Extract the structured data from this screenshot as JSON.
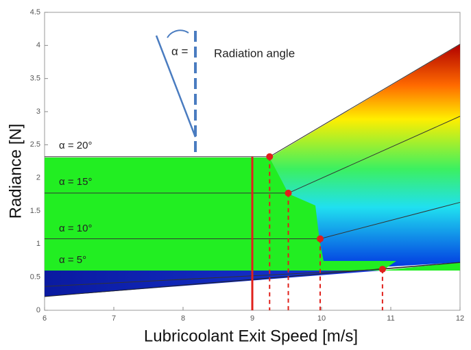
{
  "chart_data": {
    "type": "line",
    "x_label": "Lubricoolant Exit Speed [m/s]",
    "y_label": "Radiance [N]",
    "annotations": [
      "α =",
      "Radiation angle"
    ],
    "xlim": [
      6,
      12
    ],
    "xticks": [
      6,
      7,
      8,
      9,
      10,
      11,
      12
    ],
    "ylim": [
      0,
      4.5
    ],
    "yticks": [
      0,
      0.5,
      1,
      1.5,
      2,
      2.5,
      3,
      3.5,
      4,
      4.5
    ],
    "series": [
      {
        "name": "α = 20°",
        "color": "#333333",
        "x": [
          6,
          9.25,
          12
        ],
        "values": [
          2.32,
          2.32,
          4.02
        ]
      },
      {
        "name": "α = 15°",
        "color": "#333333",
        "x": [
          6,
          9.52,
          12
        ],
        "values": [
          1.77,
          1.77,
          2.93
        ]
      },
      {
        "name": "α = 10°",
        "color": "#333333",
        "x": [
          6,
          9.98,
          12
        ],
        "values": [
          1.08,
          1.08,
          1.63
        ]
      },
      {
        "name": "α = 5°",
        "color": "#333333",
        "x": [
          6,
          10.88,
          12
        ],
        "values": [
          0.36,
          0.62,
          0.72
        ]
      }
    ],
    "points": {
      "color": "#e0201b",
      "x": [
        9.25,
        9.52,
        9.98,
        10.88
      ],
      "values": [
        2.32,
        1.77,
        1.08,
        0.62
      ]
    },
    "reference_line": {
      "x": 9,
      "top": 2.32,
      "color": "#e0201b"
    }
  }
}
